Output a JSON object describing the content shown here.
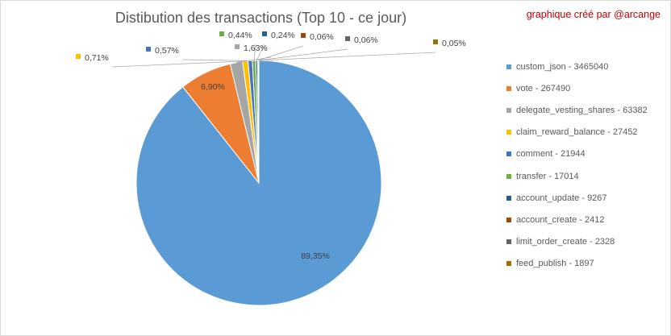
{
  "credit": "graphique créé par @arcange",
  "chart_data": {
    "type": "pie",
    "title": "Distibution des transactions  (Top 10 - ce jour)",
    "series": [
      {
        "name": "custom_json",
        "value": 3465040,
        "label": "89,35%",
        "legend": "custom_json - 3465040",
        "color": "#5b9bd5"
      },
      {
        "name": "vote",
        "value": 267490,
        "label": "6,90%",
        "legend": "vote - 267490",
        "color": "#ed7d31"
      },
      {
        "name": "delegate_vesting_shares",
        "value": 63382,
        "label": "1,63%",
        "legend": "delegate_vesting_shares - 63382",
        "color": "#a5a5a5"
      },
      {
        "name": "claim_reward_balance",
        "value": 27452,
        "label": "0,71%",
        "legend": "claim_reward_balance - 27452",
        "color": "#ffc000"
      },
      {
        "name": "comment",
        "value": 21944,
        "label": "0,57%",
        "legend": "comment - 21944",
        "color": "#4472c4"
      },
      {
        "name": "transfer",
        "value": 17014,
        "label": "0,44%",
        "legend": "transfer - 17014",
        "color": "#70ad47"
      },
      {
        "name": "account_update",
        "value": 9267,
        "label": "0,24%",
        "legend": "account_update - 9267",
        "color": "#255e91"
      },
      {
        "name": "account_create",
        "value": 2412,
        "label": "0,06%",
        "legend": "account_create - 2412",
        "color": "#9e480e"
      },
      {
        "name": "limit_order_create",
        "value": 2328,
        "label": "0,06%",
        "legend": "limit_order_create - 2328",
        "color": "#636363"
      },
      {
        "name": "feed_publish",
        "value": 1897,
        "label": "0,05%",
        "legend": "feed_publish - 1897",
        "color": "#997300"
      }
    ],
    "legend_position": "right"
  }
}
